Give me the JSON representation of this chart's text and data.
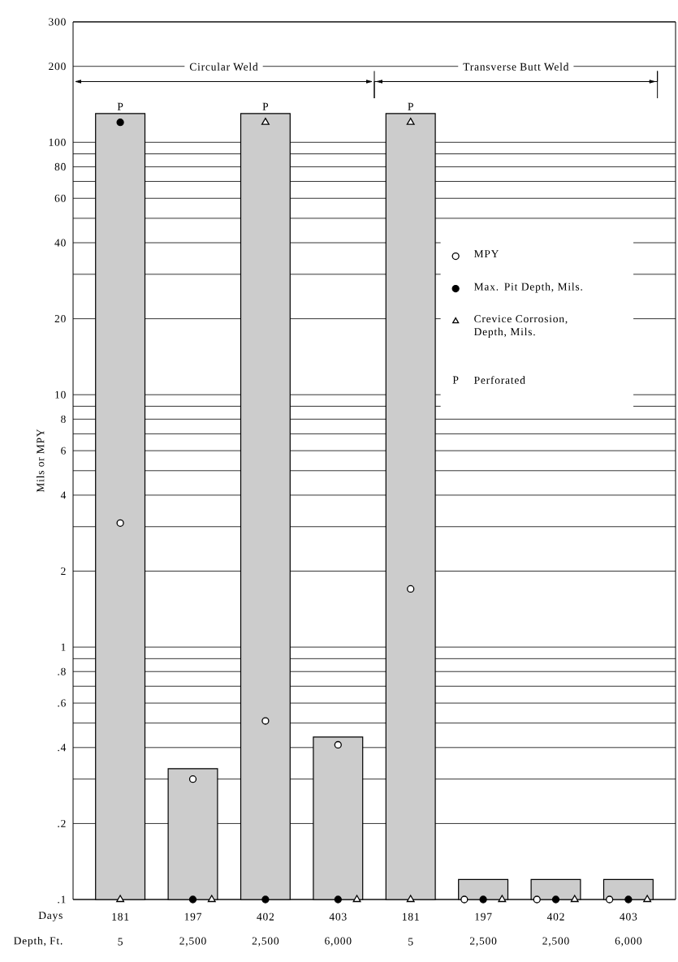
{
  "chart_data": {
    "type": "bar",
    "ylabel": "Mils or MPY",
    "log": "y",
    "grid": "y",
    "legend": "right",
    "categories": [
      "181",
      "197",
      "402",
      "403",
      "181",
      "197",
      "402",
      "403"
    ],
    "ylim": [
      0.1,
      300
    ],
    "yticks": [
      {
        "value": 0.1,
        "label": ".1"
      },
      {
        "value": 0.2,
        "label": ".2"
      },
      {
        "value": 0.3,
        "label": null
      },
      {
        "value": 0.4,
        "label": ".4"
      },
      {
        "value": 0.5,
        "label": null
      },
      {
        "value": 0.6,
        "label": ".6"
      },
      {
        "value": 0.7,
        "label": null
      },
      {
        "value": 0.8,
        "label": ".8"
      },
      {
        "value": 0.9,
        "label": null
      },
      1,
      2,
      {
        "value": 3,
        "label": null
      },
      4,
      {
        "value": 5,
        "label": null
      },
      6,
      {
        "value": 7,
        "label": null
      },
      8,
      {
        "value": 9,
        "label": null
      },
      10,
      20,
      {
        "value": 30,
        "label": null
      },
      40,
      {
        "value": 50,
        "label": null
      },
      60,
      {
        "value": 70,
        "label": null
      },
      80,
      {
        "value": 90,
        "label": null
      },
      100,
      200,
      300
    ],
    "series": [
      {
        "type": "bar",
        "color": "#cccccc",
        "values": [
          130,
          0.33,
          130,
          0.44,
          130,
          0.12,
          0.12,
          0.12
        ],
        "value_labels": [
          "P",
          null,
          "P",
          null,
          "P",
          null,
          null,
          null
        ]
      },
      {
        "type": "scatter",
        "name": "MPY",
        "marker": "circle",
        "color": "#ffffff",
        "values": [
          3.1,
          0.3,
          0.51,
          0.41,
          1.7,
          0.1,
          0.1,
          0.1
        ]
      },
      {
        "type": "scatter",
        "name": "Max. Pit Depth, Mils.",
        "marker": "circle",
        "color": "#000000",
        "values": [
          120,
          0.1,
          0.1,
          0.1,
          null,
          0.1,
          0.1,
          0.1
        ]
      },
      {
        "type": "scatter",
        "name": "Crevice Corrosion, Depth, Mils.",
        "marker": "triangle",
        "color": "#ffffff",
        "values": [
          0.1,
          0.1,
          120,
          0.1,
          120,
          0.1,
          0.1,
          0.1
        ]
      },
      {
        "type": "scatter",
        "marker": "triangle",
        "color": "#ffffff",
        "values": [
          null,
          null,
          null,
          null,
          0.1,
          null,
          null,
          null
        ]
      }
    ],
    "annotations": [
      "Circular Weld",
      "Transverse Butt Weld",
      "Perforated",
      "Days",
      "Depth, Ft.",
      "5",
      "2,500",
      "2,500",
      "6,000",
      "5",
      "2,500",
      "2,500",
      "6,000"
    ]
  }
}
